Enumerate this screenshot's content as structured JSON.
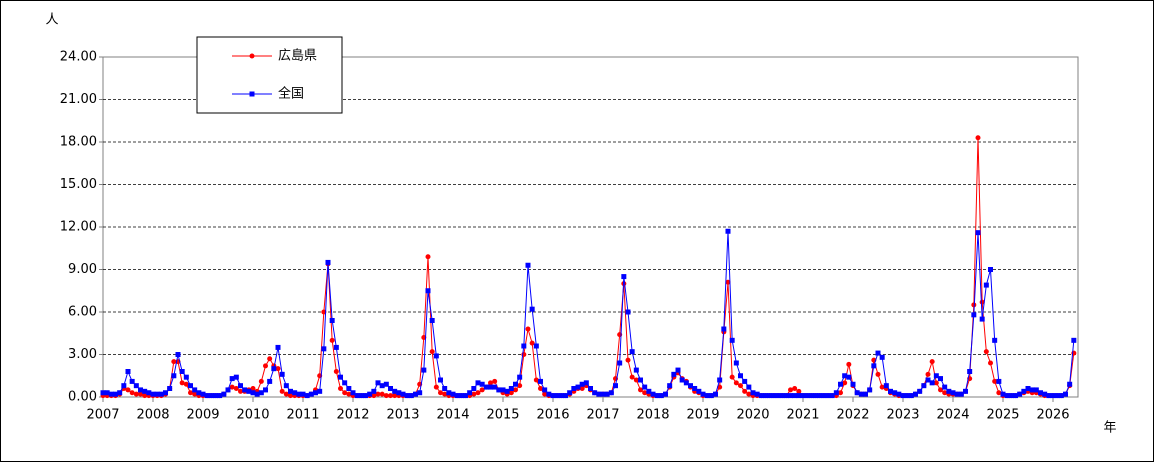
{
  "chart_data": {
    "type": "line",
    "y_unit": "人",
    "x_unit": "年",
    "categories": [
      "2007",
      null,
      null,
      null,
      null,
      null,
      null,
      null,
      null,
      null,
      null,
      null,
      "2008",
      null,
      null,
      null,
      null,
      null,
      null,
      null,
      null,
      null,
      null,
      null,
      "2009",
      null,
      null,
      null,
      null,
      null,
      null,
      null,
      null,
      null,
      null,
      null,
      "2010",
      null,
      null,
      null,
      null,
      null,
      null,
      null,
      null,
      null,
      null,
      null,
      "2011",
      null,
      null,
      null,
      null,
      null,
      null,
      null,
      null,
      null,
      null,
      null,
      "2012",
      null,
      null,
      null,
      null,
      null,
      null,
      null,
      null,
      null,
      null,
      null,
      "2013",
      null,
      null,
      null,
      null,
      null,
      null,
      null,
      null,
      null,
      null,
      null,
      "2014",
      null,
      null,
      null,
      null,
      null,
      null,
      null,
      null,
      null,
      null,
      null,
      "2015",
      null,
      null,
      null,
      null,
      null,
      null,
      null,
      null,
      null,
      null,
      null,
      "2016",
      null,
      null,
      null,
      null,
      null,
      null,
      null,
      null,
      null,
      null,
      null,
      "2017",
      null,
      null,
      null,
      null,
      null,
      null,
      null,
      null,
      null,
      null,
      null,
      "2018",
      null,
      null,
      null,
      null,
      null,
      null,
      null,
      null,
      null,
      null,
      null,
      "2019",
      null,
      null,
      null,
      null,
      null,
      null,
      null,
      null,
      null,
      null,
      null,
      "2020",
      null,
      null,
      null,
      null,
      null,
      null,
      null,
      null,
      null,
      null,
      null,
      "2021",
      null,
      null,
      null,
      null,
      null,
      null,
      null,
      null,
      null,
      null,
      null,
      "2022",
      null,
      null,
      null,
      null,
      null,
      null,
      null,
      null,
      null,
      null,
      null,
      "2023",
      null,
      null,
      null,
      null,
      null,
      null,
      null,
      null,
      null,
      null,
      null,
      "2024",
      null,
      null,
      null,
      null,
      null,
      null,
      null,
      null,
      null,
      null,
      null,
      "2025",
      null,
      null,
      null,
      null,
      null,
      null,
      null,
      null,
      null,
      null,
      null,
      "2026",
      null,
      null,
      null,
      null,
      null
    ],
    "series": [
      {
        "name": "広島県",
        "color": "#ff0000",
        "marker": "circle",
        "values": [
          0.1,
          0.1,
          0.1,
          0.1,
          0.2,
          0.6,
          0.5,
          0.3,
          0.2,
          0.2,
          0.1,
          0.1,
          0.1,
          0.1,
          0.1,
          0.2,
          0.6,
          2.5,
          2.5,
          1.0,
          0.9,
          0.3,
          0.2,
          0.1,
          0.1,
          0.1,
          0.1,
          0.1,
          0.1,
          0.2,
          0.5,
          0.7,
          0.6,
          0.4,
          0.4,
          0.5,
          0.6,
          0.4,
          1.1,
          2.2,
          2.7,
          2.2,
          2.0,
          0.4,
          0.2,
          0.1,
          0.1,
          0.1,
          0.1,
          0.1,
          0.2,
          0.5,
          1.5,
          6.0,
          9.4,
          4.0,
          1.8,
          0.6,
          0.3,
          0.2,
          0.1,
          0.1,
          0.1,
          0.1,
          0.1,
          0.1,
          0.2,
          0.2,
          0.1,
          0.1,
          0.1,
          0.1,
          0.1,
          0.1,
          0.1,
          0.2,
          0.9,
          4.2,
          9.9,
          3.2,
          0.7,
          0.3,
          0.2,
          0.1,
          0.1,
          0.1,
          0.1,
          0.1,
          0.1,
          0.2,
          0.3,
          0.5,
          0.7,
          1.0,
          1.1,
          0.5,
          0.3,
          0.2,
          0.3,
          0.5,
          0.8,
          3.0,
          4.8,
          3.8,
          1.2,
          0.6,
          0.2,
          0.1,
          0.1,
          0.1,
          0.1,
          0.1,
          0.2,
          0.4,
          0.6,
          0.6,
          0.8,
          0.5,
          0.3,
          0.2,
          0.2,
          0.2,
          0.3,
          1.3,
          4.4,
          8.0,
          2.6,
          1.4,
          1.2,
          0.5,
          0.3,
          0.2,
          0.1,
          0.1,
          0.1,
          0.2,
          0.7,
          1.4,
          1.7,
          1.3,
          1.1,
          0.7,
          0.4,
          0.3,
          0.1,
          0.1,
          0.1,
          0.2,
          0.7,
          4.6,
          8.1,
          1.4,
          1.0,
          0.8,
          0.4,
          0.2,
          0.1,
          0.1,
          0.1,
          0.1,
          0.1,
          0.1,
          0.1,
          0.1,
          0.1,
          0.5,
          0.6,
          0.4,
          0.1,
          0.1,
          0.1,
          0.1,
          0.1,
          0.1,
          0.1,
          0.1,
          0.1,
          0.3,
          1.0,
          2.3,
          0.8,
          0.3,
          0.2,
          0.2,
          0.5,
          2.6,
          1.6,
          0.7,
          0.6,
          0.3,
          0.2,
          0.1,
          0.1,
          0.1,
          0.1,
          0.2,
          0.4,
          0.8,
          1.6,
          2.5,
          1.0,
          0.5,
          0.3,
          0.2,
          0.2,
          0.2,
          0.2,
          0.4,
          1.3,
          6.5,
          18.3,
          6.7,
          3.2,
          2.4,
          1.1,
          0.3,
          0.1,
          0.1,
          0.1,
          0.1,
          0.2,
          0.3,
          0.4,
          0.3,
          0.3,
          0.2,
          0.1,
          0.1,
          0.1,
          0.1,
          0.1,
          0.2,
          0.8,
          3.1
        ]
      },
      {
        "name": "全国",
        "color": "#0000ff",
        "marker": "square",
        "values": [
          0.3,
          0.3,
          0.2,
          0.2,
          0.3,
          0.8,
          1.8,
          1.1,
          0.8,
          0.5,
          0.4,
          0.3,
          0.2,
          0.2,
          0.2,
          0.3,
          0.6,
          1.5,
          3.0,
          1.8,
          1.4,
          0.8,
          0.5,
          0.3,
          0.2,
          0.1,
          0.1,
          0.1,
          0.1,
          0.2,
          0.5,
          1.3,
          1.4,
          0.8,
          0.5,
          0.4,
          0.3,
          0.2,
          0.3,
          0.5,
          1.1,
          2.0,
          3.5,
          1.6,
          0.8,
          0.4,
          0.3,
          0.2,
          0.2,
          0.1,
          0.2,
          0.3,
          0.4,
          3.4,
          9.5,
          5.4,
          3.5,
          1.4,
          1.0,
          0.6,
          0.3,
          0.1,
          0.1,
          0.1,
          0.2,
          0.4,
          1.0,
          0.8,
          0.9,
          0.6,
          0.4,
          0.3,
          0.2,
          0.1,
          0.1,
          0.2,
          0.3,
          1.9,
          7.5,
          5.4,
          2.9,
          1.2,
          0.6,
          0.3,
          0.2,
          0.1,
          0.1,
          0.1,
          0.3,
          0.6,
          1.0,
          0.9,
          0.7,
          0.7,
          0.7,
          0.5,
          0.5,
          0.4,
          0.6,
          0.9,
          1.4,
          3.6,
          9.3,
          6.2,
          3.6,
          1.1,
          0.5,
          0.2,
          0.1,
          0.1,
          0.1,
          0.1,
          0.3,
          0.6,
          0.7,
          0.9,
          1.0,
          0.6,
          0.3,
          0.2,
          0.2,
          0.2,
          0.3,
          0.8,
          2.4,
          8.5,
          6.0,
          3.2,
          1.9,
          1.2,
          0.7,
          0.4,
          0.2,
          0.1,
          0.1,
          0.2,
          0.8,
          1.6,
          1.9,
          1.2,
          1.0,
          0.8,
          0.6,
          0.4,
          0.2,
          0.1,
          0.1,
          0.2,
          1.2,
          4.8,
          11.7,
          4.0,
          2.4,
          1.5,
          1.1,
          0.7,
          0.3,
          0.2,
          0.1,
          0.1,
          0.1,
          0.1,
          0.1,
          0.1,
          0.1,
          0.1,
          0.1,
          0.1,
          0.1,
          0.1,
          0.1,
          0.1,
          0.1,
          0.1,
          0.1,
          0.1,
          0.3,
          0.9,
          1.5,
          1.4,
          0.9,
          0.3,
          0.2,
          0.2,
          0.5,
          2.2,
          3.1,
          2.8,
          0.8,
          0.4,
          0.3,
          0.2,
          0.1,
          0.1,
          0.1,
          0.2,
          0.4,
          0.8,
          1.2,
          1.0,
          1.5,
          1.3,
          0.7,
          0.4,
          0.3,
          0.2,
          0.2,
          0.4,
          1.8,
          5.8,
          11.6,
          5.5,
          7.9,
          9.0,
          4.0,
          1.1,
          0.2,
          0.1,
          0.1,
          0.1,
          0.2,
          0.4,
          0.6,
          0.5,
          0.5,
          0.3,
          0.2,
          0.1,
          0.1,
          0.1,
          0.1,
          0.2,
          0.9,
          4.0
        ]
      }
    ],
    "ylim": [
      0,
      24
    ],
    "yticks": [
      {
        "value": 0,
        "label": "0.00"
      },
      {
        "value": 3,
        "label": "3.00"
      },
      {
        "value": 6,
        "label": "6.00"
      },
      {
        "value": 9,
        "label": "9.00"
      },
      {
        "value": 12,
        "label": "12.00"
      },
      {
        "value": 15,
        "label": "15.00"
      },
      {
        "value": 18,
        "label": "18.00"
      },
      {
        "value": 21,
        "label": "21.00"
      },
      {
        "value": 24,
        "label": "24.00"
      }
    ],
    "grid": true
  }
}
